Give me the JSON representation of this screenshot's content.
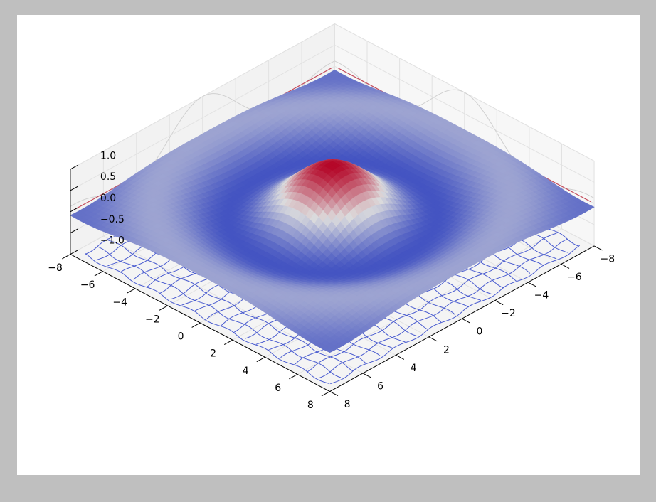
{
  "colors": {
    "background": "#bfbfbf",
    "figure": "#ffffff",
    "pane_back": "#f2f2f2",
    "pane_side": "#f7f7f7",
    "grid": "#e2e2e2",
    "surface_low": "#3b4cc0",
    "surface_mid": "#dddddd",
    "surface_high": "#b40426"
  },
  "chart_data": {
    "type": "surface3d",
    "title": "",
    "xlabel": "",
    "ylabel": "",
    "zlabel": "",
    "colormap": "coolwarm",
    "function": "z = sin(r) / r, r = sqrt(x^2 + y^2)",
    "xlim": [
      -8,
      8
    ],
    "ylim": [
      -8,
      8
    ],
    "zlim": [
      -1,
      1
    ],
    "x_ticks": [
      -8,
      -6,
      -4,
      -2,
      0,
      2,
      4,
      6,
      8
    ],
    "y_ticks": [
      -8,
      -6,
      -4,
      -2,
      0,
      2,
      4,
      6,
      8
    ],
    "z_ticks": [
      -1.0,
      -0.5,
      0.0,
      0.5,
      1.0
    ],
    "x_tick_labels": [
      "−8",
      "−6",
      "−4",
      "−2",
      "0",
      "2",
      "4",
      "6",
      "8"
    ],
    "y_tick_labels": [
      "−8",
      "−6",
      "−4",
      "−2",
      "0",
      "2",
      "4",
      "6",
      "8"
    ],
    "z_tick_labels": [
      "−1.0",
      "−0.5",
      "0.0",
      "0.5",
      "1.0"
    ],
    "projections": [
      "contour on z = -1 plane",
      "x-profile on y = 8 back wall",
      "y-profile on x = -8 back wall"
    ],
    "grid": true,
    "peak": {
      "x": 0,
      "y": 0,
      "z": 1.0
    }
  }
}
